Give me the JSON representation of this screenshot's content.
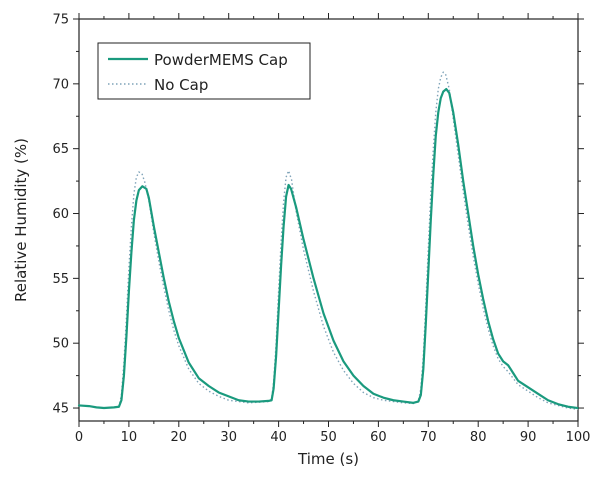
{
  "chart_data": {
    "type": "line",
    "title": "",
    "xlabel": "Time (s)",
    "ylabel": "Relative Humidity (%)",
    "xlim": [
      0,
      100
    ],
    "ylim": [
      44,
      75
    ],
    "xticks": [
      0,
      10,
      20,
      30,
      40,
      50,
      60,
      70,
      80,
      90,
      100
    ],
    "yticks": [
      45,
      50,
      55,
      60,
      65,
      70,
      75
    ],
    "grid": false,
    "legend_position": "top-left",
    "series": [
      {
        "name": "PowderMEMS Cap",
        "color": "#1a9a7e",
        "style": "solid",
        "points": [
          [
            0,
            45.2
          ],
          [
            2,
            45.15
          ],
          [
            3.5,
            45.05
          ],
          [
            5,
            45.0
          ],
          [
            7,
            45.05
          ],
          [
            8,
            45.1
          ],
          [
            8.5,
            45.6
          ],
          [
            9,
            47.5
          ],
          [
            9.5,
            50.5
          ],
          [
            10,
            54.0
          ],
          [
            10.5,
            57.0
          ],
          [
            11,
            59.5
          ],
          [
            11.5,
            61.0
          ],
          [
            12,
            61.8
          ],
          [
            12.7,
            62.1
          ],
          [
            13.5,
            61.9
          ],
          [
            14,
            61.2
          ],
          [
            15,
            59.0
          ],
          [
            16,
            57.0
          ],
          [
            17,
            55.0
          ],
          [
            18,
            53.2
          ],
          [
            19,
            51.7
          ],
          [
            20,
            50.4
          ],
          [
            22,
            48.5
          ],
          [
            24,
            47.3
          ],
          [
            26,
            46.7
          ],
          [
            28,
            46.2
          ],
          [
            30,
            45.9
          ],
          [
            32,
            45.6
          ],
          [
            34,
            45.5
          ],
          [
            36,
            45.5
          ],
          [
            38,
            45.55
          ],
          [
            38.6,
            45.6
          ],
          [
            39,
            46.5
          ],
          [
            39.5,
            49.0
          ],
          [
            40,
            52.5
          ],
          [
            40.5,
            56.0
          ],
          [
            41,
            59.0
          ],
          [
            41.5,
            61.3
          ],
          [
            42,
            62.2
          ],
          [
            42.5,
            61.9
          ],
          [
            43.5,
            60.5
          ],
          [
            45,
            58.0
          ],
          [
            47,
            55.0
          ],
          [
            49,
            52.3
          ],
          [
            51,
            50.2
          ],
          [
            53,
            48.6
          ],
          [
            55,
            47.5
          ],
          [
            57,
            46.7
          ],
          [
            59,
            46.1
          ],
          [
            61,
            45.8
          ],
          [
            63,
            45.6
          ],
          [
            65,
            45.5
          ],
          [
            67,
            45.4
          ],
          [
            68,
            45.5
          ],
          [
            68.5,
            46.0
          ],
          [
            69,
            48.0
          ],
          [
            69.5,
            51.5
          ],
          [
            70,
            55.5
          ],
          [
            70.5,
            59.5
          ],
          [
            71,
            63.0
          ],
          [
            71.5,
            66.0
          ],
          [
            72,
            67.8
          ],
          [
            72.5,
            68.9
          ],
          [
            73,
            69.4
          ],
          [
            73.6,
            69.6
          ],
          [
            74.2,
            69.3
          ],
          [
            75,
            67.8
          ],
          [
            76,
            65.3
          ],
          [
            77,
            62.5
          ],
          [
            78,
            60.0
          ],
          [
            79,
            57.5
          ],
          [
            80,
            55.3
          ],
          [
            81,
            53.4
          ],
          [
            82,
            51.7
          ],
          [
            83,
            50.3
          ],
          [
            84,
            49.2
          ],
          [
            85,
            48.6
          ],
          [
            86,
            48.3
          ],
          [
            87,
            47.7
          ],
          [
            88,
            47.1
          ],
          [
            90,
            46.6
          ],
          [
            92,
            46.1
          ],
          [
            94,
            45.6
          ],
          [
            96,
            45.3
          ],
          [
            98,
            45.1
          ],
          [
            100,
            45.0
          ]
        ]
      },
      {
        "name": "No Cap",
        "color": "#7fa3b8",
        "style": "dotted",
        "points": [
          [
            0,
            45.2
          ],
          [
            2,
            45.15
          ],
          [
            3.5,
            45.05
          ],
          [
            5,
            45.0
          ],
          [
            7,
            45.05
          ],
          [
            8,
            45.1
          ],
          [
            8.5,
            46.0
          ],
          [
            9,
            48.5
          ],
          [
            9.5,
            52.0
          ],
          [
            10,
            55.8
          ],
          [
            10.5,
            59.0
          ],
          [
            11,
            61.5
          ],
          [
            11.5,
            62.8
          ],
          [
            12,
            63.2
          ],
          [
            12.6,
            63.1
          ],
          [
            13.2,
            62.4
          ],
          [
            14,
            61.0
          ],
          [
            15,
            58.5
          ],
          [
            16,
            56.3
          ],
          [
            17,
            54.3
          ],
          [
            18,
            52.5
          ],
          [
            19,
            51.0
          ],
          [
            20,
            49.8
          ],
          [
            22,
            48.0
          ],
          [
            24,
            46.9
          ],
          [
            26,
            46.3
          ],
          [
            28,
            45.9
          ],
          [
            30,
            45.6
          ],
          [
            32,
            45.5
          ],
          [
            34,
            45.4
          ],
          [
            36,
            45.45
          ],
          [
            38,
            45.5
          ],
          [
            38.6,
            45.7
          ],
          [
            39,
            47.0
          ],
          [
            39.5,
            50.0
          ],
          [
            40,
            54.0
          ],
          [
            40.5,
            57.8
          ],
          [
            41,
            60.9
          ],
          [
            41.5,
            62.8
          ],
          [
            42,
            63.3
          ],
          [
            42.6,
            62.6
          ],
          [
            43.5,
            60.2
          ],
          [
            45,
            57.2
          ],
          [
            47,
            54.0
          ],
          [
            49,
            51.3
          ],
          [
            51,
            49.3
          ],
          [
            53,
            47.9
          ],
          [
            55,
            46.9
          ],
          [
            57,
            46.2
          ],
          [
            59,
            45.8
          ],
          [
            61,
            45.6
          ],
          [
            63,
            45.5
          ],
          [
            65,
            45.4
          ],
          [
            67,
            45.35
          ],
          [
            68,
            45.5
          ],
          [
            68.5,
            46.5
          ],
          [
            69,
            49.0
          ],
          [
            69.5,
            53.0
          ],
          [
            70,
            57.3
          ],
          [
            70.5,
            61.5
          ],
          [
            71,
            65.0
          ],
          [
            71.5,
            67.8
          ],
          [
            72,
            69.6
          ],
          [
            72.5,
            70.5
          ],
          [
            73,
            70.9
          ],
          [
            73.5,
            70.7
          ],
          [
            74.2,
            69.6
          ],
          [
            75,
            67.3
          ],
          [
            76,
            64.5
          ],
          [
            77,
            61.7
          ],
          [
            78,
            59.1
          ],
          [
            79,
            56.7
          ],
          [
            80,
            54.6
          ],
          [
            81,
            52.7
          ],
          [
            82,
            51.1
          ],
          [
            83,
            49.8
          ],
          [
            84,
            48.8
          ],
          [
            85,
            48.2
          ],
          [
            86,
            47.8
          ],
          [
            87,
            47.3
          ],
          [
            88,
            46.8
          ],
          [
            90,
            46.3
          ],
          [
            92,
            45.8
          ],
          [
            94,
            45.4
          ],
          [
            96,
            45.2
          ],
          [
            98,
            45.0
          ],
          [
            100,
            44.9
          ]
        ]
      }
    ]
  }
}
